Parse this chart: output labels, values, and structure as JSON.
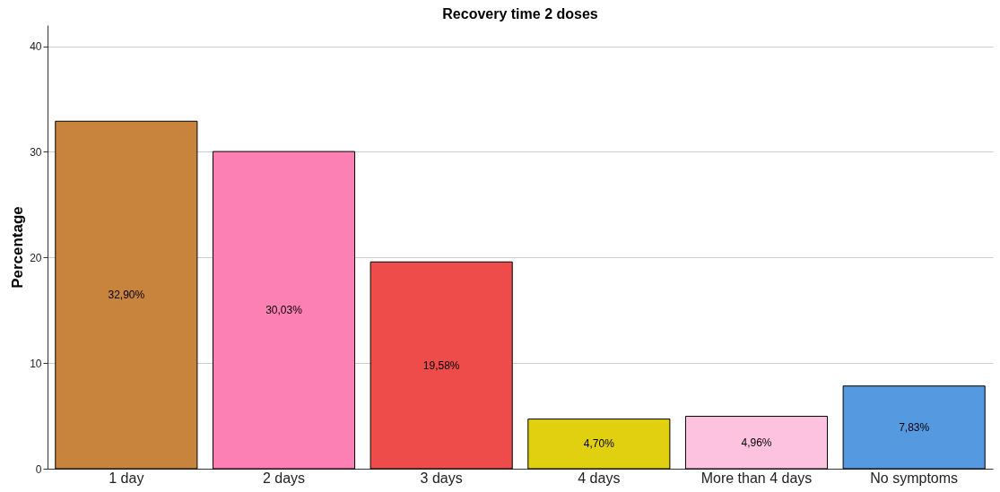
{
  "chart_data": {
    "type": "bar",
    "title": "Recovery time 2 doses",
    "ylabel": "Percentage",
    "categories": [
      "1 day",
      "2 days",
      "3 days",
      "4 days",
      "More than 4 days",
      "No symptoms"
    ],
    "values": [
      32.9,
      30.03,
      19.58,
      4.7,
      4.96,
      7.83
    ],
    "colors": [
      "#c8843c",
      "#fc80b4",
      "#ee4b4b",
      "#e0d010",
      "#fcc2e0",
      "#5599e0"
    ],
    "value_labels": [
      "32,90%",
      "30,03%",
      "19,58%",
      "4,70%",
      "4,96%",
      "7,83%"
    ],
    "ylim": [
      0,
      42
    ],
    "yticks": [
      0,
      10,
      20,
      30,
      40
    ],
    "grid": "y"
  }
}
